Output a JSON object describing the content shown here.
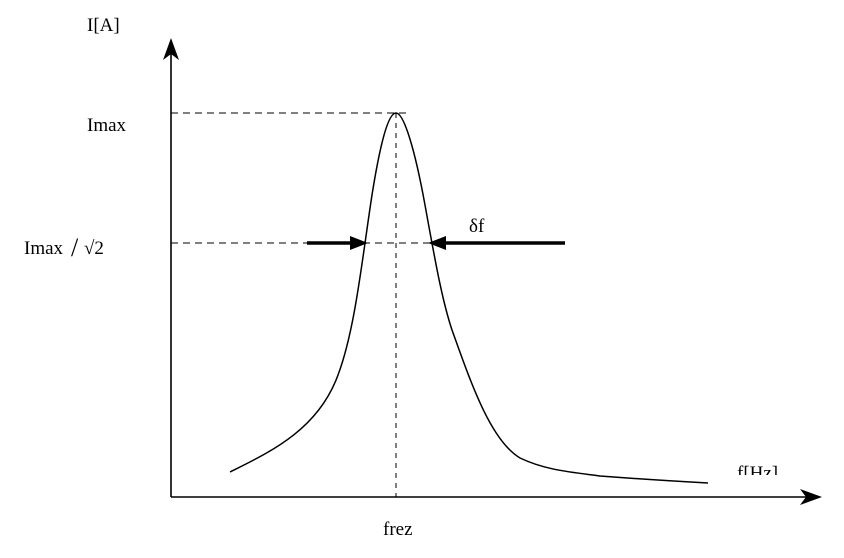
{
  "diagram": {
    "y_axis_label": "I[A]",
    "x_axis_label": "f[Hz]",
    "peak_label": "Imax",
    "half_power_label_main": "Imax",
    "half_power_label_slash": "/",
    "half_power_label_root": "√2",
    "bandwidth_label": "δf",
    "resonance_label": "frez",
    "colors": {
      "stroke": "#000000",
      "background": "#ffffff"
    }
  }
}
